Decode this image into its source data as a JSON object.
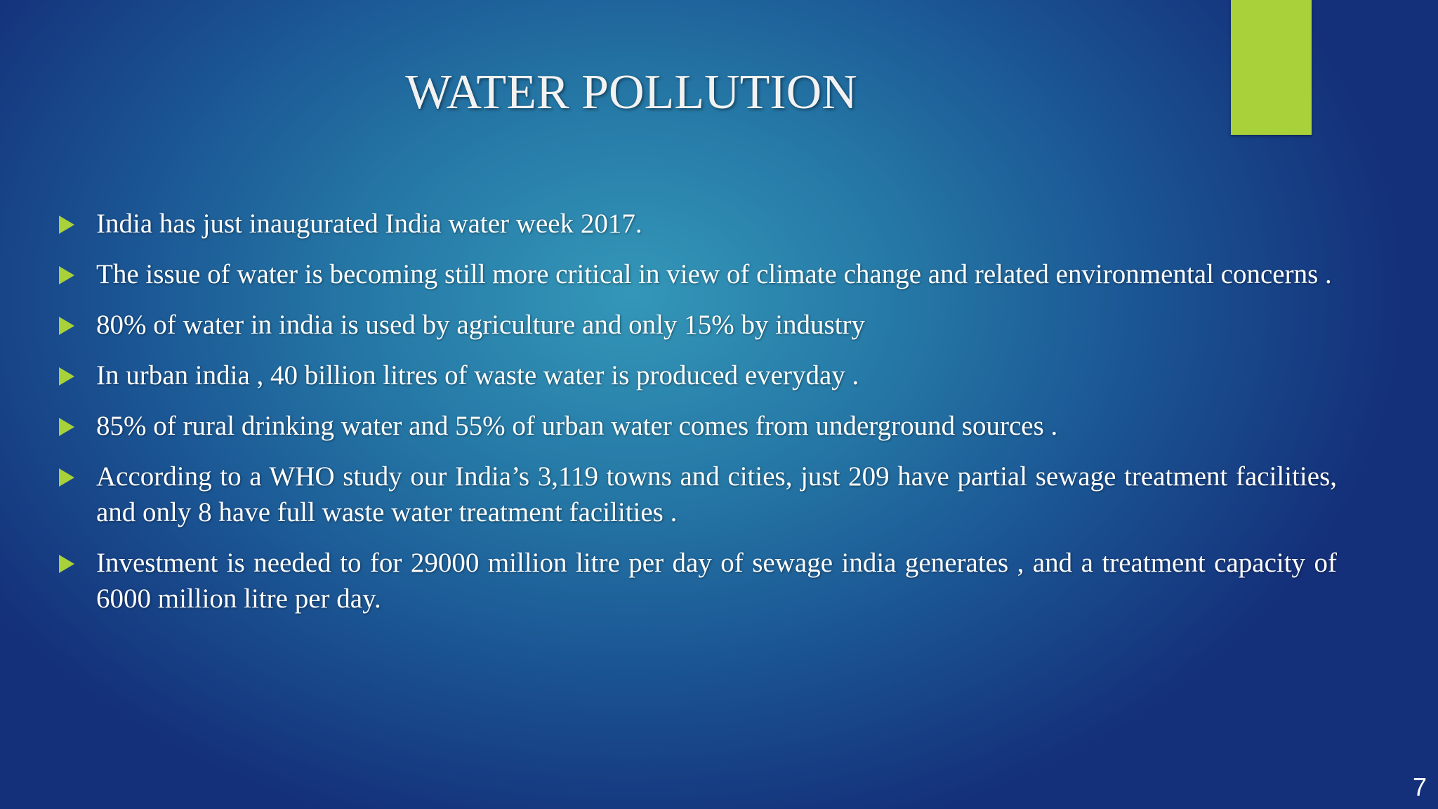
{
  "title": "WATER POLLUTION",
  "bullets": [
    "India has just inaugurated India water week 2017.",
    "The issue of water is becoming still more critical in view of climate change and related environmental concerns .",
    "80% of water in india is used by agriculture and only 15% by industry",
    "In urban india , 40 billion litres of waste water is produced everyday .",
    "85% of rural drinking water and 55% of urban water comes from underground sources .",
    "According to a WHO study our India’s 3,119 towns and cities, just 209 have partial sewage treatment facilities, and only 8 have full waste water treatment facilities .",
    "Investment is needed to for 29000 million litre per day of sewage india generates , and a treatment capacity of 6000 million litre per day."
  ],
  "page_number": "7"
}
